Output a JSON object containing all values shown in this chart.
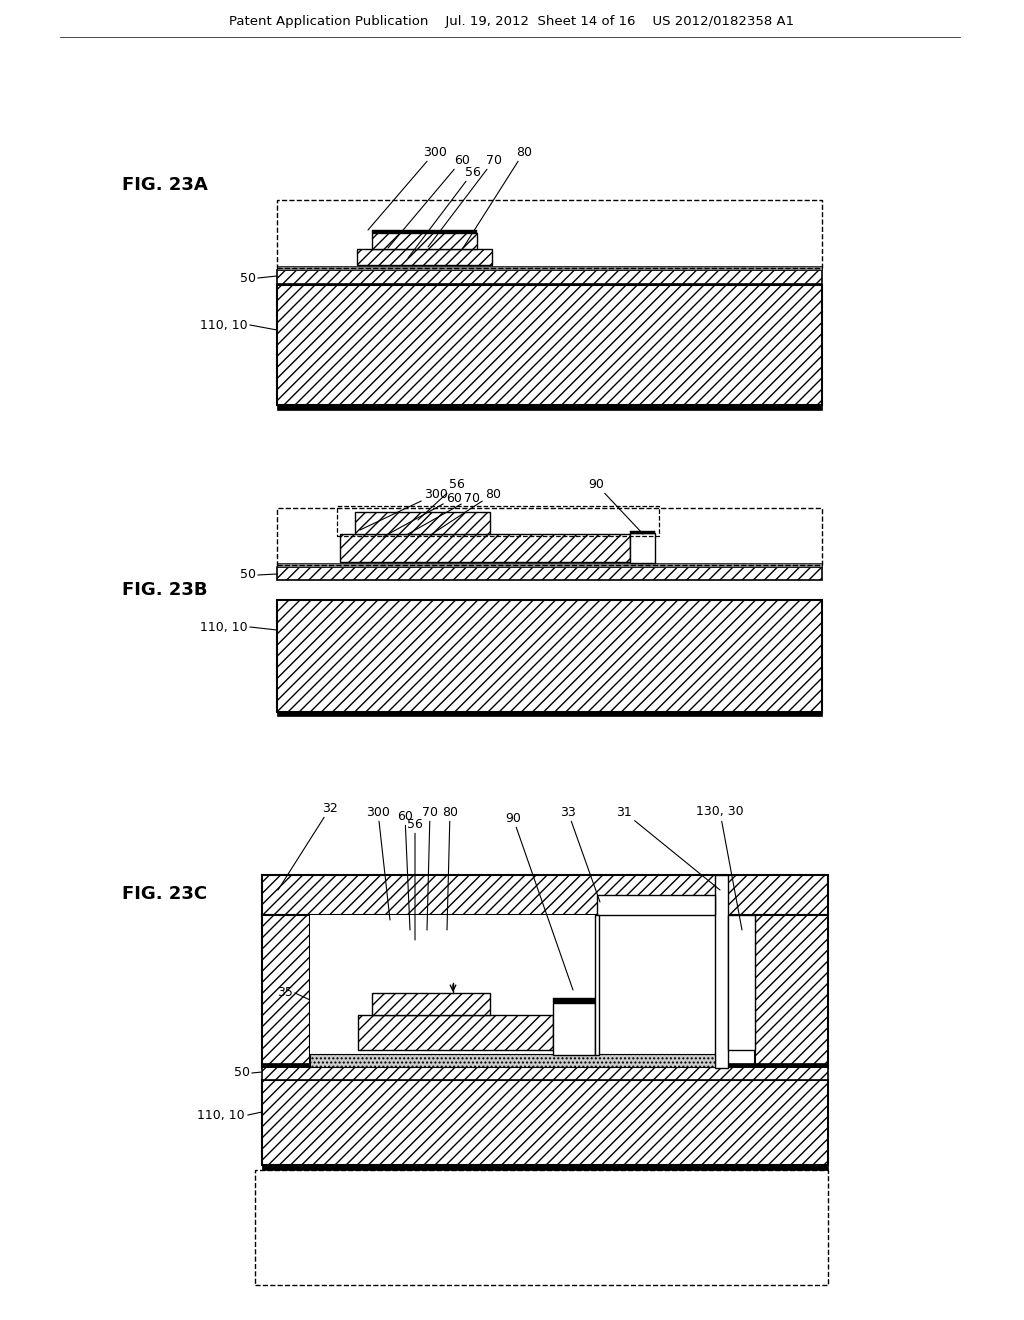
{
  "bg_color": "#ffffff",
  "header": "Patent Application Publication    Jul. 19, 2012  Sheet 14 of 16    US 2012/0182358 A1",
  "fig23a_label": "FIG. 23A",
  "fig23b_label": "FIG. 23B",
  "fig23c_label": "FIG. 23C"
}
